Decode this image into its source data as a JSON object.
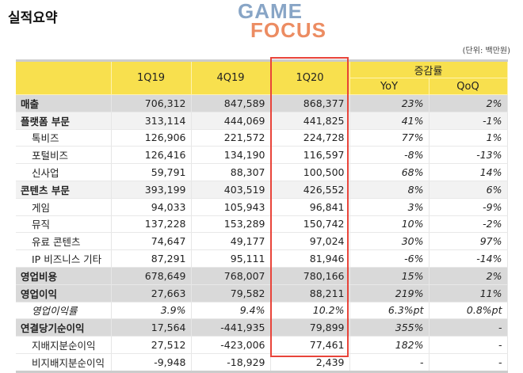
{
  "title": "실적요약",
  "unit": "(단위: 백만원)",
  "watermark": "GAME FOCUS",
  "colors": {
    "header": "#f8e04e",
    "highlight_box": "#e8443a",
    "row_dark": "#d9d9d9",
    "row_light": "#f2f2f2"
  },
  "headers": {
    "q1": "1Q19",
    "q2": "4Q19",
    "q3": "1Q20",
    "change": "증감률",
    "yoy": "YoY",
    "qoq": "QoQ"
  },
  "rows": [
    {
      "label": "매출",
      "style": "dark",
      "v": [
        "706,312",
        "847,589",
        "868,377",
        "23%",
        "2%"
      ]
    },
    {
      "label": "플랫폼 부문",
      "style": "light",
      "v": [
        "313,114",
        "444,069",
        "441,825",
        "41%",
        "-1%"
      ]
    },
    {
      "label": "톡비즈",
      "style": "sub",
      "v": [
        "126,906",
        "221,572",
        "224,728",
        "77%",
        "1%"
      ]
    },
    {
      "label": "포털비즈",
      "style": "sub",
      "v": [
        "126,416",
        "134,190",
        "116,597",
        "-8%",
        "-13%"
      ]
    },
    {
      "label": "신사업",
      "style": "sub",
      "v": [
        "59,791",
        "88,307",
        "100,500",
        "68%",
        "14%"
      ]
    },
    {
      "label": "콘텐츠 부문",
      "style": "light",
      "v": [
        "393,199",
        "403,519",
        "426,552",
        "8%",
        "6%"
      ]
    },
    {
      "label": "게임",
      "style": "sub",
      "v": [
        "94,033",
        "105,943",
        "96,841",
        "3%",
        "-9%"
      ]
    },
    {
      "label": "뮤직",
      "style": "sub",
      "v": [
        "137,228",
        "153,289",
        "150,742",
        "10%",
        "-2%"
      ]
    },
    {
      "label": "유료 콘텐츠",
      "style": "sub",
      "v": [
        "74,647",
        "49,177",
        "97,024",
        "30%",
        "97%"
      ]
    },
    {
      "label": "IP 비즈니스 기타",
      "style": "sub",
      "v": [
        "87,291",
        "95,111",
        "81,946",
        "-6%",
        "-14%"
      ]
    },
    {
      "label": "영업비용",
      "style": "dark",
      "v": [
        "678,649",
        "768,007",
        "780,166",
        "15%",
        "2%"
      ]
    },
    {
      "label": "영업이익",
      "style": "dark",
      "v": [
        "27,663",
        "79,582",
        "88,211",
        "219%",
        "11%"
      ]
    },
    {
      "label": "영업이익률",
      "style": "italic",
      "v": [
        "3.9%",
        "9.4%",
        "10.2%",
        "6.3%pt",
        "0.8%pt"
      ]
    },
    {
      "label": "연결당기순이익",
      "style": "dark",
      "v": [
        "17,564",
        "-441,935",
        "79,899",
        "355%",
        "-"
      ]
    },
    {
      "label": "지배지분순이익",
      "style": "sub",
      "v": [
        "27,512",
        "-423,006",
        "77,461",
        "182%",
        "-"
      ]
    },
    {
      "label": "비지배지분순이익",
      "style": "sub",
      "v": [
        "-9,948",
        "-18,929",
        "2,439",
        "-",
        "-"
      ]
    }
  ]
}
